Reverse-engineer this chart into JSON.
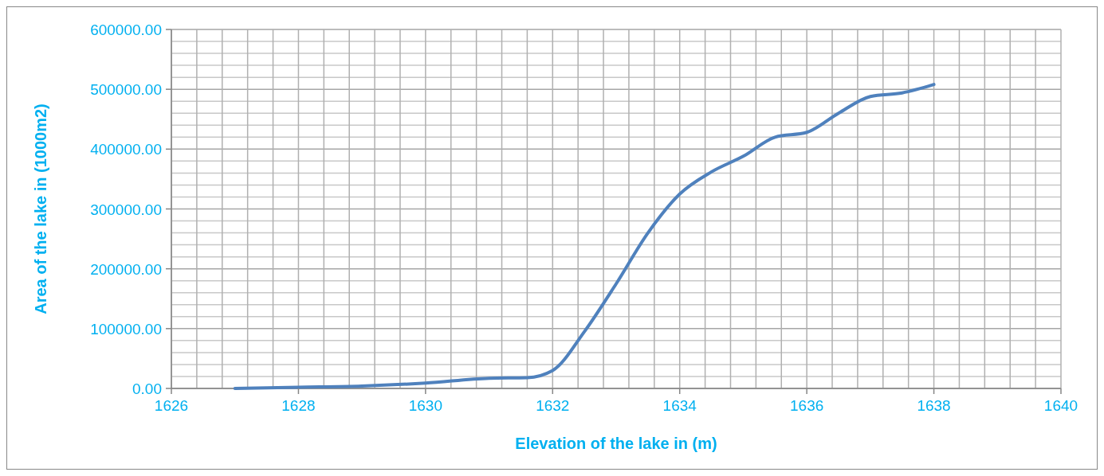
{
  "chart_data": {
    "type": "line",
    "xlabel": "Elevation of the lake in (m)",
    "ylabel": "Area of the lake in (1000m2)",
    "x": [
      1627,
      1628,
      1629,
      1630,
      1631,
      1631.6,
      1632,
      1632.5,
      1633,
      1633.5,
      1634,
      1634.5,
      1635,
      1635.5,
      1636,
      1636.5,
      1637,
      1637.5,
      1638
    ],
    "series": [
      {
        "color": "#4f81bd",
        "values": [
          0,
          2000,
          4000,
          9000,
          17000,
          18000,
          30000,
          95000,
          175000,
          260000,
          325000,
          362000,
          388000,
          420000,
          428000,
          460000,
          488000,
          494000,
          508000
        ]
      }
    ],
    "xlim": [
      1626,
      1640
    ],
    "xticks": [
      1626,
      {
        "value": 1626.4,
        "label": null
      },
      {
        "value": 1626.8,
        "label": null
      },
      {
        "value": 1627.2,
        "label": null
      },
      {
        "value": 1627.6,
        "label": null
      },
      1628,
      {
        "value": 1628.4,
        "label": null
      },
      {
        "value": 1628.8,
        "label": null
      },
      {
        "value": 1629.2,
        "label": null
      },
      {
        "value": 1629.6,
        "label": null
      },
      1630,
      {
        "value": 1630.4,
        "label": null
      },
      {
        "value": 1630.8,
        "label": null
      },
      {
        "value": 1631.2,
        "label": null
      },
      {
        "value": 1631.6,
        "label": null
      },
      1632,
      {
        "value": 1632.4,
        "label": null
      },
      {
        "value": 1632.8,
        "label": null
      },
      {
        "value": 1633.2,
        "label": null
      },
      {
        "value": 1633.6,
        "label": null
      },
      1634,
      {
        "value": 1634.4,
        "label": null
      },
      {
        "value": 1634.8,
        "label": null
      },
      {
        "value": 1635.2,
        "label": null
      },
      {
        "value": 1635.6,
        "label": null
      },
      1636,
      {
        "value": 1636.4,
        "label": null
      },
      {
        "value": 1636.8,
        "label": null
      },
      {
        "value": 1637.2,
        "label": null
      },
      {
        "value": 1637.6,
        "label": null
      },
      1638,
      {
        "value": 1638.4,
        "label": null
      },
      {
        "value": 1638.8,
        "label": null
      },
      {
        "value": 1639.2,
        "label": null
      },
      {
        "value": 1639.6,
        "label": null
      },
      1640
    ],
    "ylim": [
      0,
      600000
    ],
    "yticks": [
      {
        "value": 0,
        "label": "0.00"
      },
      {
        "value": 20000,
        "label": null
      },
      {
        "value": 40000,
        "label": null
      },
      {
        "value": 60000,
        "label": null
      },
      {
        "value": 80000,
        "label": null
      },
      {
        "value": 100000,
        "label": "100000.00"
      },
      {
        "value": 120000,
        "label": null
      },
      {
        "value": 140000,
        "label": null
      },
      {
        "value": 160000,
        "label": null
      },
      {
        "value": 180000,
        "label": null
      },
      {
        "value": 200000,
        "label": "200000.00"
      },
      {
        "value": 220000,
        "label": null
      },
      {
        "value": 240000,
        "label": null
      },
      {
        "value": 260000,
        "label": null
      },
      {
        "value": 280000,
        "label": null
      },
      {
        "value": 300000,
        "label": "300000.00"
      },
      {
        "value": 320000,
        "label": null
      },
      {
        "value": 340000,
        "label": null
      },
      {
        "value": 360000,
        "label": null
      },
      {
        "value": 380000,
        "label": null
      },
      {
        "value": 400000,
        "label": "400000.00"
      },
      {
        "value": 420000,
        "label": null
      },
      {
        "value": 440000,
        "label": null
      },
      {
        "value": 460000,
        "label": null
      },
      {
        "value": 480000,
        "label": null
      },
      {
        "value": 500000,
        "label": "500000.00"
      },
      {
        "value": 520000,
        "label": null
      },
      {
        "value": 540000,
        "label": null
      },
      {
        "value": 560000,
        "label": null
      },
      {
        "value": 580000,
        "label": null
      },
      {
        "value": 600000,
        "label": "600000.00"
      }
    ],
    "grid": true,
    "marker": "none",
    "line_style": "solid"
  }
}
